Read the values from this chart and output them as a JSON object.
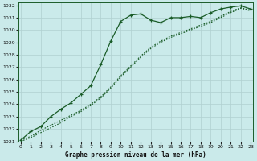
{
  "title": "Graphe pression niveau de la mer (hPa)",
  "background_color": "#caeaea",
  "grid_color": "#b0d0d0",
  "line_color": "#1a5c28",
  "xlim": [
    -0.2,
    23.2
  ],
  "ylim": [
    1021,
    1032.2
  ],
  "xticks": [
    0,
    1,
    2,
    3,
    4,
    5,
    6,
    7,
    8,
    9,
    10,
    11,
    12,
    13,
    14,
    15,
    16,
    17,
    18,
    19,
    20,
    21,
    22,
    23
  ],
  "yticks": [
    1021,
    1022,
    1023,
    1024,
    1025,
    1026,
    1027,
    1028,
    1029,
    1030,
    1031,
    1032
  ],
  "series1_x": [
    0,
    1,
    2,
    3,
    4,
    5,
    6,
    7,
    8,
    9,
    10,
    11,
    12,
    13,
    14,
    15,
    16,
    17,
    18,
    19,
    20,
    21,
    22,
    23
  ],
  "series1_y": [
    1021.1,
    1021.8,
    1022.2,
    1023.0,
    1023.6,
    1024.1,
    1024.8,
    1025.5,
    1027.2,
    1029.1,
    1030.7,
    1031.2,
    1031.3,
    1030.8,
    1030.6,
    1031.0,
    1031.0,
    1031.1,
    1031.0,
    1031.4,
    1031.7,
    1031.85,
    1031.95,
    1031.7
  ],
  "series2_x": [
    0,
    1,
    2,
    3,
    4,
    5,
    6,
    7,
    8,
    9,
    10,
    11,
    12,
    13,
    14,
    15,
    16,
    17,
    18,
    19,
    20,
    21,
    22,
    23
  ],
  "series2_y": [
    1021.1,
    1021.4,
    1021.9,
    1022.3,
    1022.7,
    1023.1,
    1023.5,
    1024.0,
    1024.6,
    1025.4,
    1026.3,
    1027.1,
    1027.9,
    1028.6,
    1029.1,
    1029.5,
    1029.8,
    1030.1,
    1030.4,
    1030.7,
    1031.1,
    1031.5,
    1031.8,
    1031.6
  ],
  "series3_x": [
    0,
    1,
    2,
    3,
    4,
    5,
    6,
    7,
    8,
    9,
    10,
    11,
    12,
    13,
    14,
    15,
    16,
    17,
    18,
    19,
    20,
    21,
    22,
    23
  ],
  "series3_y": [
    1021.0,
    1021.3,
    1021.7,
    1022.1,
    1022.5,
    1023.0,
    1023.4,
    1023.9,
    1024.5,
    1025.3,
    1026.2,
    1027.0,
    1027.8,
    1028.5,
    1029.0,
    1029.4,
    1029.7,
    1030.0,
    1030.3,
    1030.6,
    1031.0,
    1031.4,
    1031.75,
    1031.55
  ]
}
